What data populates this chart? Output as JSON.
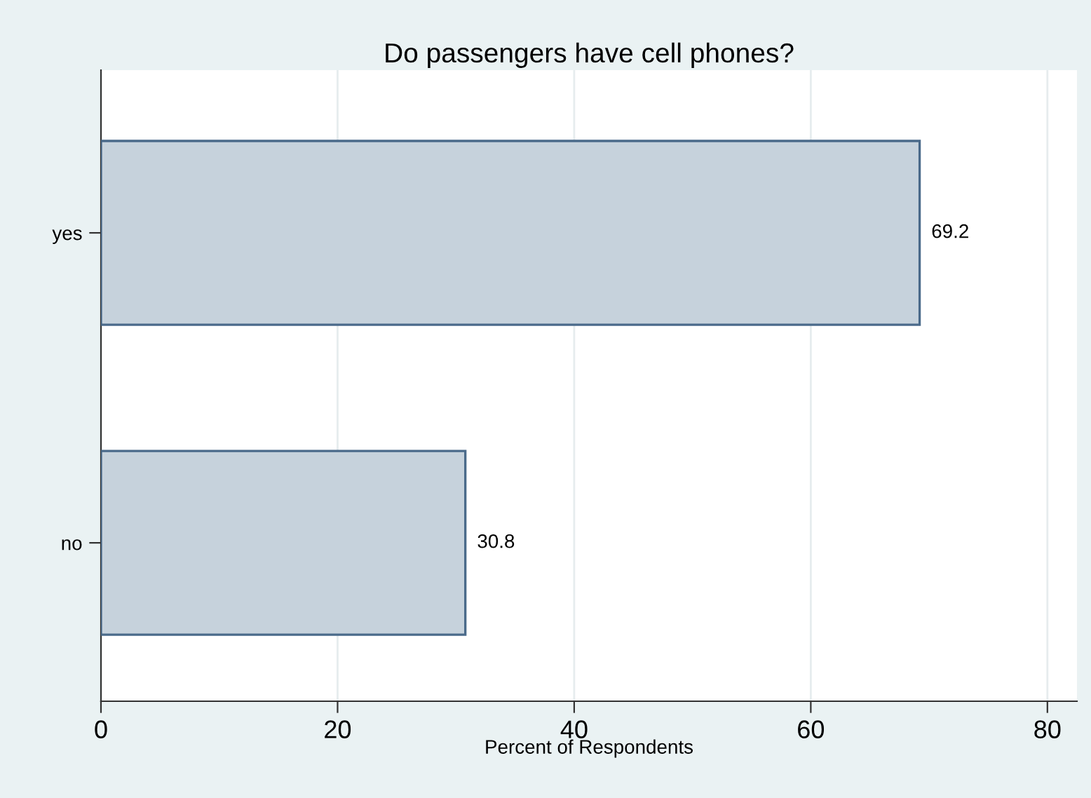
{
  "chart_data": {
    "type": "bar",
    "orientation": "horizontal",
    "title": "Do passengers have cell phones?",
    "xlabel": "Percent of Respondents",
    "categories": [
      "yes",
      "no"
    ],
    "values": [
      69.2,
      30.8
    ],
    "color": "#c6d2dc",
    "xlim": [
      0,
      82.5
    ],
    "xticks": [
      0,
      20,
      40,
      60,
      80
    ],
    "grid": "x",
    "data_labels": true
  }
}
